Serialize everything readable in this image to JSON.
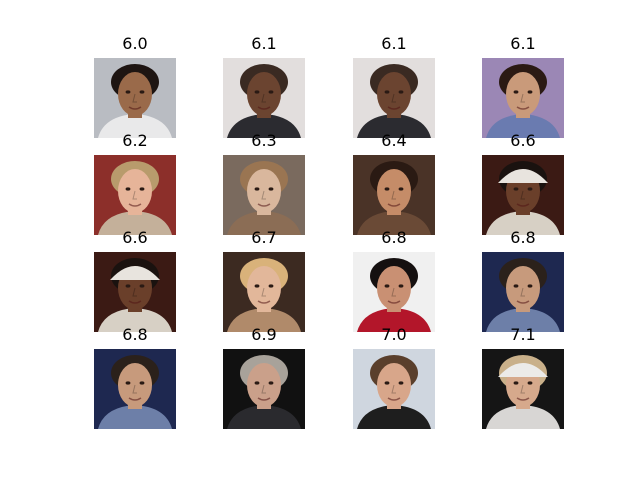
{
  "figure": {
    "rows": 4,
    "cols": 4,
    "items": [
      {
        "score": "6.0",
        "subject": "man with dark spiky hair, bright background",
        "bg": "#b9bcc2",
        "skin": "#9a6a4a",
        "hair": "#1e1512",
        "clothes": "#e9e9ea",
        "hat": null
      },
      {
        "score": "6.1",
        "subject": "bald man in suit, light background",
        "bg": "#e2dedd",
        "skin": "#6b4430",
        "hair": "#3a2a22",
        "clothes": "#2b2b30",
        "hat": null
      },
      {
        "score": "6.1",
        "subject": "bald man in suit, light background",
        "bg": "#e2dedd",
        "skin": "#6b4430",
        "hair": "#3a2a22",
        "clothes": "#2b2b30",
        "hat": null
      },
      {
        "score": "6.1",
        "subject": "woman with headband, purple background",
        "bg": "#9b87b5",
        "skin": "#c99a7a",
        "hair": "#2b1a14",
        "clothes": "#6a7bb0",
        "hat": null
      },
      {
        "score": "6.2",
        "subject": "smiling blond man, red background",
        "bg": "#8c2f2a",
        "skin": "#e6b499",
        "hair": "#b89b6c",
        "clothes": "#c4b09a",
        "hat": null
      },
      {
        "score": "6.3",
        "subject": "woman with long light brown hair",
        "bg": "#7a6a5e",
        "skin": "#d9b79d",
        "hair": "#9a7552",
        "clothes": "#8b6d55",
        "hat": null
      },
      {
        "score": "6.4",
        "subject": "woman with long dark hair, smiling",
        "bg": "#4a3327",
        "skin": "#c58c68",
        "hair": "#2a1a13",
        "clothes": "#6a4a36",
        "hat": null
      },
      {
        "score": "6.6",
        "subject": "man in white cap",
        "bg": "#3b1a14",
        "skin": "#6a3f2a",
        "hair": "#1a120f",
        "clothes": "#d7d0c5",
        "hat": "#e8e4de"
      },
      {
        "score": "6.6",
        "subject": "man in white cap",
        "bg": "#3b1a14",
        "skin": "#6a3f2a",
        "hair": "#1a120f",
        "clothes": "#d7d0c5",
        "hat": "#e8e4de"
      },
      {
        "score": "6.7",
        "subject": "smiling blonde woman",
        "bg": "#3c2a21",
        "skin": "#e2b79a",
        "hair": "#d9b27a",
        "clothes": "#b08a6a",
        "hat": null
      },
      {
        "score": "6.8",
        "subject": "woman with black hair, red flower",
        "bg": "#f0f0f0",
        "skin": "#c99073",
        "hair": "#151010",
        "clothes": "#b3162a",
        "hat": null
      },
      {
        "score": "6.8",
        "subject": "man with short dark hair, blue background",
        "bg": "#1e2850",
        "skin": "#c79a7c",
        "hair": "#2b211b",
        "clothes": "#6d7fa8",
        "hat": null
      },
      {
        "score": "6.8",
        "subject": "man with short dark hair, blue background",
        "bg": "#1e2850",
        "skin": "#c79a7c",
        "hair": "#2b211b",
        "clothes": "#6d7fa8",
        "hat": null
      },
      {
        "score": "6.9",
        "subject": "grey-haired man, dark background",
        "bg": "#111111",
        "skin": "#caa08a",
        "hair": "#a8a29a",
        "clothes": "#2a2a2e",
        "hat": null
      },
      {
        "score": "7.0",
        "subject": "young man in dark shirt, light background",
        "bg": "#cfd6df",
        "skin": "#d8a68a",
        "hair": "#5a3f2c",
        "clothes": "#1e1e1e",
        "hat": null
      },
      {
        "score": "7.1",
        "subject": "young man with headband",
        "bg": "#151515",
        "skin": "#d6a98c",
        "hair": "#c9b08a",
        "clothes": "#d8d6d4",
        "hat": "#ecebe9"
      }
    ]
  }
}
